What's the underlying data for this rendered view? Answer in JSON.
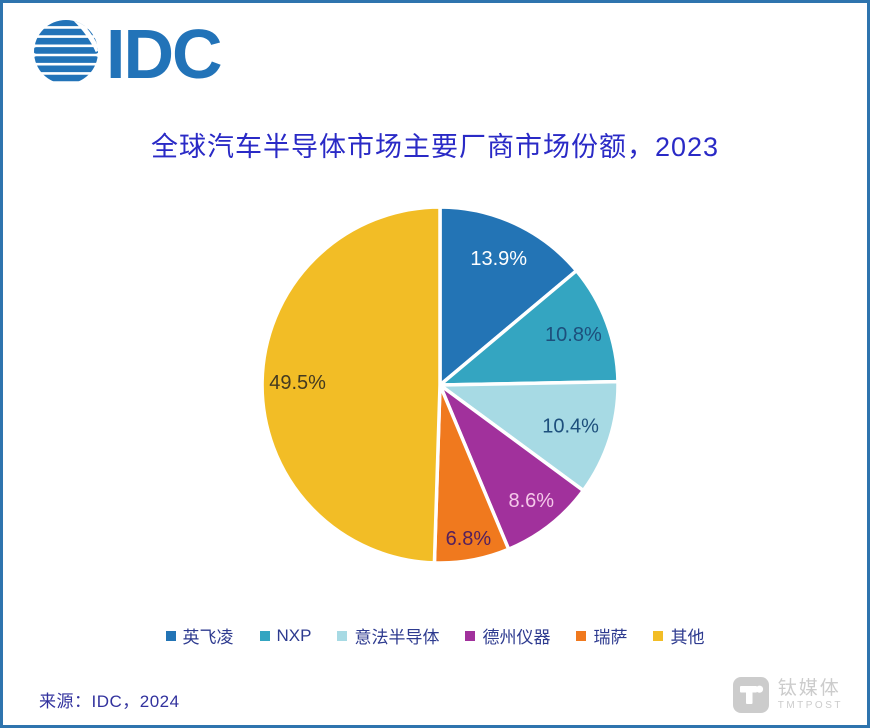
{
  "logo": {
    "text": "IDC"
  },
  "title": "全球汽车半导体市场主要厂商市场份额，2023",
  "source": "来源：IDC，2024",
  "watermark": {
    "cn": "钛媒体",
    "en": "TMTPOST"
  },
  "colors": {
    "background": "#ffffff",
    "frame_border": "#2e74ae",
    "idc_blue": "#2273b8",
    "title_blue": "#2a2ac6",
    "source_blue": "#32329e",
    "legend_text": "#2d3a8f",
    "watermark_gray": "#cccccc",
    "pie_stroke": "#ffffff"
  },
  "chart_data": {
    "type": "pie",
    "title": "全球汽车半导体市场主要厂商市场份额，2023",
    "start_angle_deg": 0,
    "direction": "clockwise",
    "value_suffix": "%",
    "total": 100.0,
    "legend_position": "bottom",
    "series": [
      {
        "label": "英飞凌",
        "value": 13.9,
        "color": "#2374b5",
        "label_color": "#ffffff"
      },
      {
        "label": "NXP",
        "value": 10.8,
        "color": "#34a5c1",
        "label_color": "#1d4f7c"
      },
      {
        "label": "意法半导体",
        "value": 10.4,
        "color": "#a7dae4",
        "label_color": "#1d4f7c"
      },
      {
        "label": "德州仪器",
        "value": 8.6,
        "color": "#a1319c",
        "label_color": "#f5c8ea"
      },
      {
        "label": "瑞萨",
        "value": 6.8,
        "color": "#f0791e",
        "label_color": "#54205e"
      },
      {
        "label": "其他",
        "value": 49.5,
        "color": "#f2bd26",
        "label_color": "#443a20"
      }
    ]
  }
}
